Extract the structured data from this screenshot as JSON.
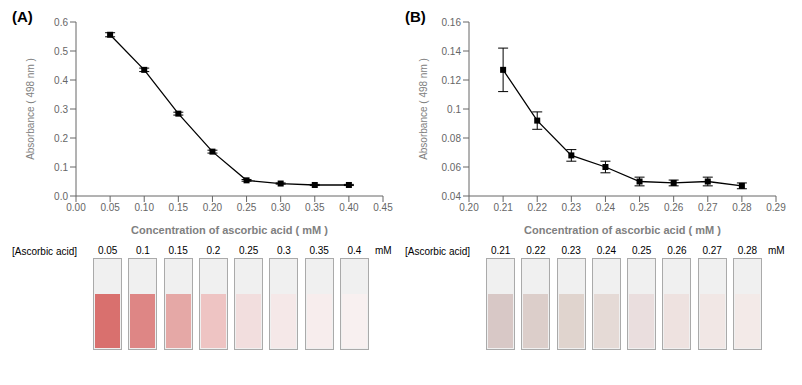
{
  "chart_data": [
    {
      "type": "line",
      "title": "(A)",
      "xlabel": "Concentration of ascorbic acid ( mM )",
      "ylabel": "Absorbance ( 498 nm )",
      "x": [
        0.05,
        0.1,
        0.15,
        0.2,
        0.25,
        0.3,
        0.35,
        0.4
      ],
      "values": [
        0.556,
        0.435,
        0.284,
        0.153,
        0.054,
        0.043,
        0.038,
        0.038
      ],
      "errors": [
        0.007,
        0.006,
        0.005,
        0.005,
        0.003,
        0.002,
        0.002,
        0.002
      ],
      "color": "#000000",
      "marker": "square",
      "line_style": "solid",
      "xlim": [
        0.0,
        0.45
      ],
      "xticks": [
        {
          "value": 0,
          "label": "0.00"
        },
        0.05,
        {
          "value": 0.1,
          "label": "0.10"
        },
        0.15,
        {
          "value": 0.2,
          "label": "0.20"
        },
        0.25,
        {
          "value": 0.3,
          "label": "0.30"
        },
        0.35,
        {
          "value": 0.4,
          "label": "0.40"
        },
        0.45
      ],
      "ylim": [
        0.0,
        0.6
      ],
      "yticks": [
        {
          "value": 0,
          "label": "0.0"
        },
        0.1,
        0.2,
        0.3,
        0.4,
        0.5,
        0.6
      ]
    },
    {
      "type": "line",
      "title": "(B)",
      "xlabel": "Concentration of ascorbic acid ( mM )",
      "ylabel": "Absorbance ( 498 nm )",
      "x": [
        0.21,
        0.22,
        0.23,
        0.24,
        0.25,
        0.26,
        0.27,
        0.28
      ],
      "values": [
        0.127,
        0.092,
        0.068,
        0.06,
        0.05,
        0.049,
        0.05,
        0.047
      ],
      "errors": [
        0.015,
        0.006,
        0.004,
        0.004,
        0.003,
        0.002,
        0.003,
        0.002
      ],
      "color": "#000000",
      "marker": "square",
      "line_style": "solid",
      "xlim": [
        0.2,
        0.29
      ],
      "xticks": [
        {
          "value": 0.2,
          "label": "0.20"
        },
        0.21,
        0.22,
        0.23,
        0.24,
        0.25,
        0.26,
        0.27,
        0.28,
        0.29
      ],
      "ylim": [
        0.04,
        0.16
      ],
      "yticks": [
        0.04,
        0.06,
        0.08,
        0.1,
        0.12,
        0.14,
        0.16
      ]
    },
    {
      "type": "swatch",
      "title": "[Ascorbic acid]",
      "xlabel": "mM",
      "categories": [
        "0.05",
        "0.1",
        "0.15",
        "0.2",
        "0.25",
        "0.3",
        "0.35",
        "0.4"
      ],
      "colors": [
        "#d9706e",
        "#de8685",
        "#e5a8a6",
        "#eec4c3",
        "#f2dede",
        "#f5e8e8",
        "#f7eded",
        "#f8f0f0"
      ]
    },
    {
      "type": "swatch",
      "title": "[Ascorbic acid]",
      "xlabel": "mM",
      "categories": [
        "0.21",
        "0.22",
        "0.23",
        "0.24",
        "0.25",
        "0.26",
        "0.27",
        "0.28"
      ],
      "colors": [
        "#d8c8c6",
        "#dcceca",
        "#e0d4ce",
        "#e5dad6",
        "#eadede",
        "#eee2e0",
        "#f1e7e5",
        "#f3eae8"
      ]
    }
  ]
}
